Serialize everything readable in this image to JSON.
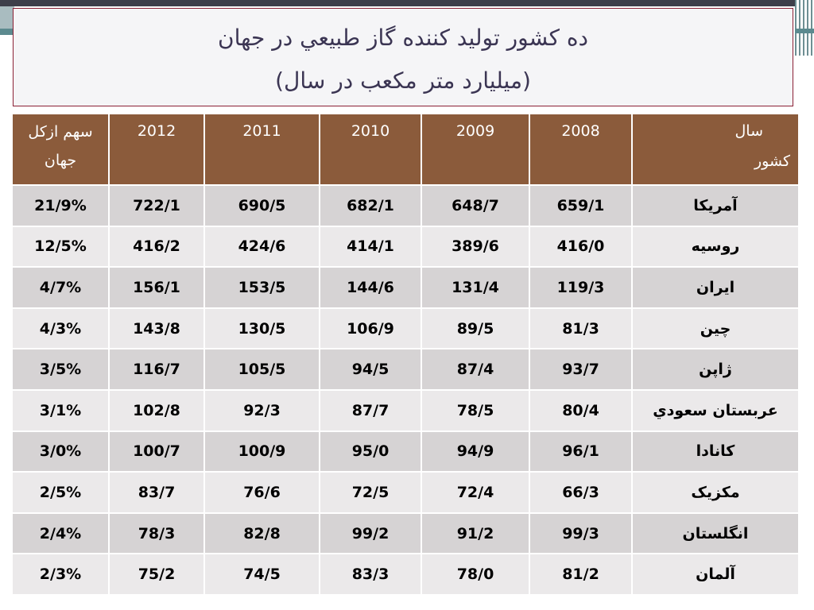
{
  "title": {
    "line1": "ده کشور تولید کننده گاز طبیعي در جهان",
    "line2": "(میلیارد متر مکعب در سال)"
  },
  "table": {
    "header": {
      "share": "سهم ازکل جهان",
      "years": [
        "2012",
        "2011",
        "2010",
        "2009",
        "2008"
      ],
      "corner_year": "سال",
      "corner_country": "کشور"
    },
    "rows": [
      {
        "share": "21/9%",
        "y2012": "722/1",
        "y2011": "690/5",
        "y2010": "682/1",
        "y2009": "648/7",
        "y2008": "659/1",
        "country": "آمریکا"
      },
      {
        "share": "12/5%",
        "y2012": "416/2",
        "y2011": "424/6",
        "y2010": "414/1",
        "y2009": "389/6",
        "y2008": "416/0",
        "country": "روسیه"
      },
      {
        "share": "4/7%",
        "y2012": "156/1",
        "y2011": "153/5",
        "y2010": "144/6",
        "y2009": "131/4",
        "y2008": "119/3",
        "country": "ایران"
      },
      {
        "share": "4/3%",
        "y2012": "143/8",
        "y2011": "130/5",
        "y2010": "106/9",
        "y2009": "89/5",
        "y2008": "81/3",
        "country": "چین"
      },
      {
        "share": "3/5%",
        "y2012": "116/7",
        "y2011": "105/5",
        "y2010": "94/5",
        "y2009": "87/4",
        "y2008": "93/7",
        "country": "ژاپن"
      },
      {
        "share": "3/1%",
        "y2012": "102/8",
        "y2011": "92/3",
        "y2010": "87/7",
        "y2009": "78/5",
        "y2008": "80/4",
        "country": "عربستان سعودي"
      },
      {
        "share": "3/0%",
        "y2012": "100/7",
        "y2011": "100/9",
        "y2010": "95/0",
        "y2009": "94/9",
        "y2008": "96/1",
        "country": "کانادا"
      },
      {
        "share": "2/5%",
        "y2012": "83/7",
        "y2011": "76/6",
        "y2010": "72/5",
        "y2009": "72/4",
        "y2008": "66/3",
        "country": "مکزیک"
      },
      {
        "share": "2/4%",
        "y2012": "78/3",
        "y2011": "82/8",
        "y2010": "99/2",
        "y2009": "91/2",
        "y2008": "99/3",
        "country": "انگلستان"
      },
      {
        "share": "2/3%",
        "y2012": "75/2",
        "y2011": "74/5",
        "y2010": "83/3",
        "y2009": "78/0",
        "y2008": "81/2",
        "country": "آلمان"
      }
    ]
  }
}
